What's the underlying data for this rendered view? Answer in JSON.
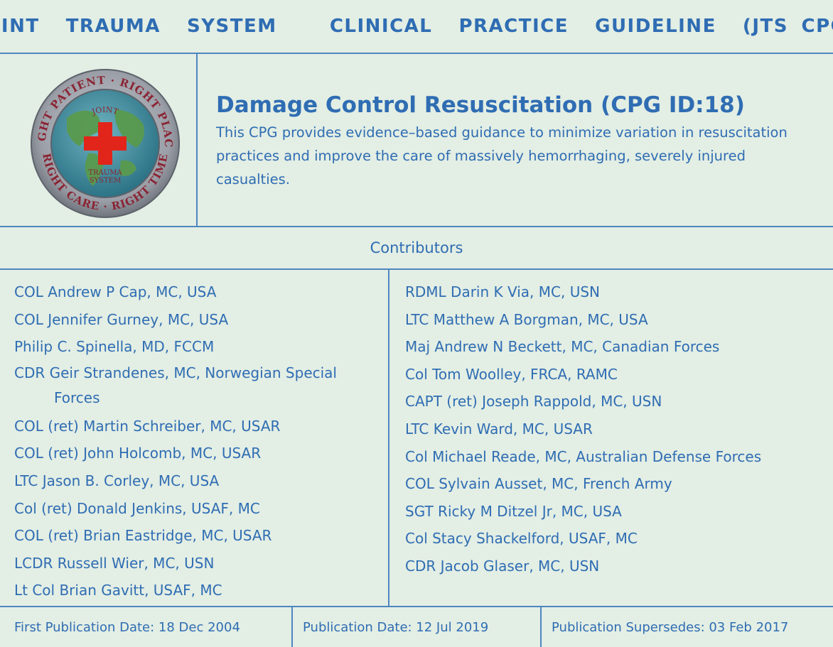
{
  "header": {
    "title": "JOINT  TRAUMA  SYSTEM    CLINICAL  PRACTICE  GUIDELINE  (JTS CPG)"
  },
  "logo": {
    "ring_text": "RIGHT PATIENT · RIGHT PLACE · RIGHT TIME · RIGHT CARE",
    "inner_top": "JOINT",
    "inner_bottom_1": "TRAUMA",
    "inner_bottom_2": "SYSTEM",
    "colors": {
      "ring": "#9a9ea6",
      "globe_sea": "#3e8fa0",
      "globe_land": "#5a9a4e",
      "cross": "#e1251b",
      "text": "#8a2332"
    }
  },
  "guideline": {
    "title": "Damage Control Resuscitation (CPG ID:18)",
    "description": "This CPG provides evidence–based guidance to minimize variation in resuscitation practices and improve the care of massively hemorrhaging, severely injured casualties."
  },
  "contributors": {
    "label": "Contributors",
    "left": [
      "COL Andrew P Cap, MC, USA",
      "COL Jennifer Gurney, MC, USA",
      "Philip C. Spinella, MD, FCCM",
      "CDR Geir Strandenes, MC, Norwegian Special Forces",
      "COL (ret) Martin Schreiber, MC, USAR",
      "COL (ret) John Holcomb, MC, USAR",
      "LTC Jason B. Corley, MC, USA",
      "Col (ret) Donald Jenkins, USAF, MC",
      "COL (ret) Brian Eastridge, MC, USAR",
      "LCDR Russell Wier, MC, USN",
      "Lt Col Brian Gavitt, USAF, MC"
    ],
    "right": [
      "RDML Darin K Via, MC, USN",
      "LTC Matthew A Borgman, MC, USA",
      "Maj Andrew N Beckett, MC, Canadian Forces",
      "Col Tom Woolley, FRCA, RAMC",
      "CAPT (ret) Joseph Rappold, MC, USN",
      "LTC Kevin Ward, MC, USAR",
      "Col Michael Reade, MC, Australian Defense Forces",
      "COL Sylvain Ausset, MC, French Army",
      "SGT Ricky M Ditzel Jr, MC, USA",
      "Col Stacy Shackelford, USAF, MC",
      "CDR Jacob Glaser, MC, USN"
    ]
  },
  "footer": {
    "first_publication": "First Publication Date: 18 Dec 2004",
    "publication": "Publication Date: 12 Jul 2019",
    "supersedes": "Publication Supersedes: 03 Feb 2017"
  }
}
